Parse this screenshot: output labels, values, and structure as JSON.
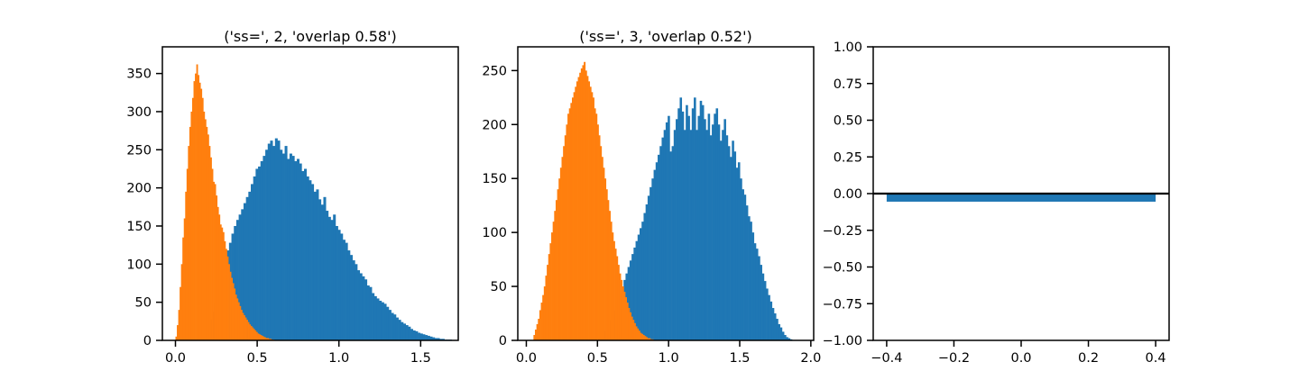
{
  "chart_data": [
    {
      "type": "bar",
      "title": "('ss=', 2, 'overlap 0.58')",
      "xlim": [
        -0.08,
        1.73
      ],
      "ylim": [
        0,
        385
      ],
      "xticks": [
        {
          "value": 0.0,
          "label": "0.0"
        },
        {
          "value": 0.5,
          "label": "0.5"
        },
        {
          "value": 1.0,
          "label": "1.0"
        },
        {
          "value": 1.5,
          "label": "1.5"
        }
      ],
      "yticks": [
        {
          "value": 0,
          "label": "0"
        },
        {
          "value": 50,
          "label": "50"
        },
        {
          "value": 100,
          "label": "100"
        },
        {
          "value": 150,
          "label": "150"
        },
        {
          "value": 200,
          "label": "200"
        },
        {
          "value": 250,
          "label": "250"
        },
        {
          "value": 300,
          "label": "300"
        },
        {
          "value": 350,
          "label": "350"
        }
      ],
      "series": [
        {
          "color": "#1f77b4",
          "bin_start": 0.15,
          "bin_width": 0.0148,
          "values": [
            2,
            5,
            10,
            18,
            28,
            38,
            50,
            65,
            80,
            92,
            105,
            118,
            128,
            140,
            150,
            158,
            165,
            172,
            180,
            188,
            195,
            205,
            215,
            225,
            228,
            235,
            242,
            250,
            258,
            262,
            255,
            265,
            262,
            250,
            245,
            255,
            238,
            245,
            242,
            235,
            238,
            232,
            222,
            225,
            215,
            210,
            205,
            195,
            198,
            185,
            178,
            188,
            170,
            162,
            158,
            165,
            150,
            145,
            140,
            132,
            128,
            118,
            112,
            105,
            100,
            92,
            88,
            84,
            80,
            72,
            70,
            62,
            58,
            55,
            52,
            50,
            48,
            44,
            40,
            36,
            34,
            30,
            27,
            24,
            22,
            20,
            18,
            15,
            13,
            12,
            10,
            9,
            8,
            7,
            6,
            5,
            4,
            3,
            3,
            2,
            2,
            1,
            1,
            1
          ]
        },
        {
          "color": "#ff7f0e",
          "bin_start": 0.0,
          "bin_width": 0.0085,
          "values": [
            5,
            20,
            40,
            70,
            100,
            135,
            160,
            195,
            225,
            255,
            280,
            300,
            318,
            340,
            350,
            362,
            348,
            338,
            330,
            318,
            300,
            290,
            280,
            270,
            255,
            240,
            225,
            208,
            205,
            190,
            175,
            165,
            152,
            148,
            142,
            130,
            120,
            110,
            100,
            90,
            82,
            75,
            68,
            60,
            55,
            50,
            45,
            40,
            36,
            33,
            30,
            27,
            24,
            21,
            19,
            17,
            15,
            13,
            11,
            9,
            8,
            7,
            6,
            5,
            4,
            3,
            3,
            2,
            2,
            1,
            1
          ]
        }
      ]
    },
    {
      "type": "bar",
      "title": "('ss=', 3, 'overlap 0.52')",
      "xlim": [
        -0.06,
        2.02
      ],
      "ylim": [
        0,
        272
      ],
      "xticks": [
        {
          "value": 0.0,
          "label": "0.0"
        },
        {
          "value": 0.5,
          "label": "0.5"
        },
        {
          "value": 1.0,
          "label": "1.0"
        },
        {
          "value": 1.5,
          "label": "1.5"
        },
        {
          "value": 2.0,
          "label": "2.0"
        }
      ],
      "yticks": [
        {
          "value": 0,
          "label": "0"
        },
        {
          "value": 50,
          "label": "50"
        },
        {
          "value": 100,
          "label": "100"
        },
        {
          "value": 150,
          "label": "150"
        },
        {
          "value": 200,
          "label": "200"
        },
        {
          "value": 250,
          "label": "250"
        }
      ],
      "series": [
        {
          "color": "#1f77b4",
          "bin_start": 0.5,
          "bin_width": 0.0141,
          "values": [
            2,
            4,
            6,
            9,
            12,
            15,
            19,
            23,
            28,
            33,
            38,
            44,
            50,
            56,
            62,
            68,
            74,
            80,
            86,
            92,
            98,
            104,
            110,
            118,
            126,
            134,
            142,
            150,
            158,
            165,
            172,
            180,
            188,
            195,
            202,
            208,
            175,
            180,
            195,
            205,
            215,
            225,
            212,
            195,
            218,
            208,
            195,
            215,
            225,
            195,
            208,
            222,
            218,
            205,
            195,
            210,
            190,
            200,
            210,
            215,
            200,
            185,
            195,
            205,
            190,
            180,
            170,
            185,
            175,
            160,
            165,
            150,
            140,
            135,
            125,
            115,
            110,
            100,
            90,
            85,
            78,
            70,
            62,
            55,
            48,
            42,
            36,
            30,
            25,
            20,
            15,
            12,
            8,
            5,
            3,
            2,
            1
          ]
        },
        {
          "color": "#ff7f0e",
          "bin_start": 0.05,
          "bin_width": 0.0104,
          "values": [
            5,
            10,
            15,
            20,
            28,
            35,
            42,
            50,
            60,
            70,
            80,
            90,
            100,
            110,
            120,
            130,
            140,
            150,
            160,
            170,
            180,
            190,
            200,
            210,
            215,
            220,
            225,
            230,
            235,
            240,
            244,
            248,
            252,
            255,
            258,
            250,
            245,
            240,
            235,
            230,
            225,
            215,
            210,
            200,
            190,
            180,
            170,
            160,
            150,
            140,
            130,
            120,
            110,
            100,
            92,
            85,
            78,
            70,
            62,
            56,
            50,
            45,
            40,
            35,
            30,
            26,
            22,
            19,
            16,
            13,
            11,
            9,
            7,
            6,
            5,
            4,
            3,
            2,
            2,
            1,
            1
          ]
        }
      ]
    },
    {
      "type": "bar",
      "title": "",
      "xlim": [
        -0.44,
        0.44
      ],
      "ylim": [
        -1.0,
        1.0
      ],
      "xticks": [
        {
          "value": -0.4,
          "label": "−0.4"
        },
        {
          "value": -0.2,
          "label": "−0.2"
        },
        {
          "value": 0.0,
          "label": "0.0"
        },
        {
          "value": 0.2,
          "label": "0.2"
        },
        {
          "value": 0.4,
          "label": "0.4"
        }
      ],
      "yticks": [
        {
          "value": -1.0,
          "label": "−1.00"
        },
        {
          "value": -0.75,
          "label": "−0.75"
        },
        {
          "value": -0.5,
          "label": "−0.50"
        },
        {
          "value": -0.25,
          "label": "−0.25"
        },
        {
          "value": 0.0,
          "label": "0.00"
        },
        {
          "value": 0.25,
          "label": "0.25"
        },
        {
          "value": 0.5,
          "label": "0.50"
        },
        {
          "value": 0.75,
          "label": "0.75"
        },
        {
          "value": 1.0,
          "label": "1.00"
        }
      ],
      "bars": [
        {
          "x0": -0.4,
          "x1": 0.4,
          "value": -0.055,
          "color": "#1f77b4"
        }
      ],
      "hline": {
        "value": 0.0,
        "color": "#000000"
      }
    }
  ]
}
